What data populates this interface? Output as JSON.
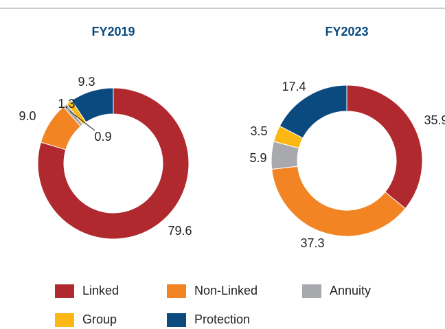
{
  "chart_data": [
    {
      "type": "pie",
      "title": "FY2019",
      "categories": [
        "Linked",
        "Non-Linked",
        "Annuity",
        "Group",
        "Protection"
      ],
      "values": [
        79.6,
        9.0,
        0.9,
        1.3,
        9.3
      ],
      "value_labels": [
        "79.6",
        "9.0",
        "0.9",
        "1.3",
        "9.3"
      ],
      "colors": [
        "#b0292f",
        "#f28424",
        "#a8a9ad",
        "#fbb813",
        "#0a4a7f"
      ]
    },
    {
      "type": "pie",
      "title": "FY2023",
      "categories": [
        "Linked",
        "Non-Linked",
        "Annuity",
        "Group",
        "Protection"
      ],
      "values": [
        35.9,
        37.3,
        5.9,
        3.5,
        17.4
      ],
      "colors": [
        "#b0292f",
        "#f28424",
        "#a8a9ad",
        "#fbb813",
        "#0a4a7f"
      ]
    }
  ]
}
